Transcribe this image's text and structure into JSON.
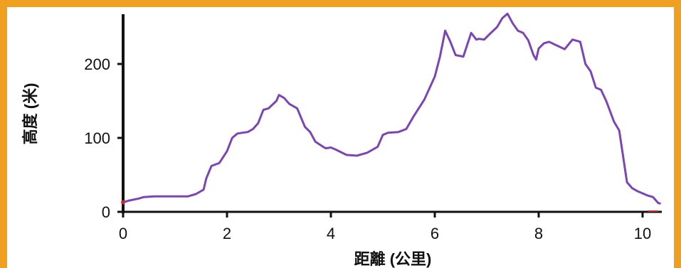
{
  "colors": {
    "frame": "#f0a020",
    "line": "#7b45b5",
    "axis": "#111111",
    "marker": "#c03030"
  },
  "chart_data": {
    "type": "line",
    "title": "",
    "xlabel": "距離 (公里)",
    "ylabel": "高度 (米)",
    "xlim": [
      0,
      10.35
    ],
    "ylim": [
      0,
      270
    ],
    "x_ticks": [
      "0",
      "2",
      "4",
      "6",
      "8",
      "10"
    ],
    "y_ticks": [
      "0",
      "100",
      "200"
    ],
    "grid": false,
    "series": [
      {
        "x": [
          0,
          0.1,
          0.3,
          0.4,
          0.6,
          1.0,
          1.25,
          1.4,
          1.55,
          1.6,
          1.7,
          1.85,
          2.0,
          2.1,
          2.2,
          2.4,
          2.5,
          2.6,
          2.7,
          2.8,
          2.95,
          3.0,
          3.1,
          3.2,
          3.35,
          3.5,
          3.6,
          3.7,
          3.85,
          3.9,
          4.0,
          4.1,
          4.3,
          4.5,
          4.7,
          4.9,
          5.0,
          5.1,
          5.3,
          5.45,
          5.6,
          5.8,
          6.0,
          6.1,
          6.2,
          6.3,
          6.4,
          6.55,
          6.7,
          6.8,
          6.85,
          6.95,
          7.05,
          7.2,
          7.3,
          7.4,
          7.5,
          7.6,
          7.7,
          7.8,
          7.9,
          7.95,
          8.0,
          8.1,
          8.2,
          8.35,
          8.5,
          8.65,
          8.8,
          8.9,
          9.0,
          9.1,
          9.2,
          9.3,
          9.45,
          9.55,
          9.7,
          9.8,
          9.9,
          10.0,
          10.1,
          10.2,
          10.25,
          10.3,
          10.35
        ],
        "y": [
          13,
          15,
          18,
          20,
          21,
          21,
          21,
          24,
          30,
          45,
          62,
          66,
          82,
          100,
          106,
          108,
          112,
          120,
          138,
          140,
          150,
          158,
          154,
          146,
          140,
          115,
          108,
          95,
          88,
          86,
          87,
          84,
          77,
          76,
          80,
          88,
          104,
          107,
          108,
          112,
          130,
          152,
          183,
          210,
          245,
          230,
          212,
          210,
          242,
          233,
          234,
          233,
          240,
          250,
          262,
          268,
          255,
          245,
          242,
          232,
          212,
          206,
          221,
          228,
          230,
          225,
          220,
          233,
          230,
          200,
          190,
          168,
          165,
          150,
          122,
          110,
          40,
          32,
          28,
          25,
          22,
          20,
          16,
          12,
          11
        ]
      }
    ]
  }
}
